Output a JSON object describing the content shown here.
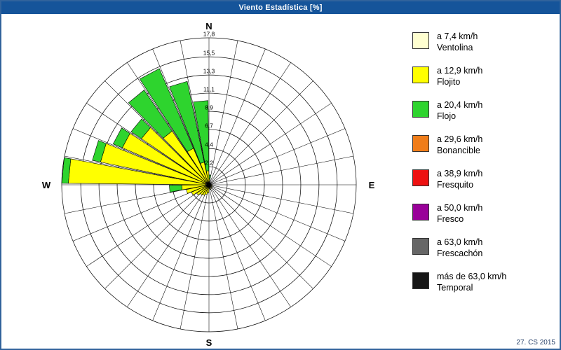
{
  "window": {
    "title": "Viento Estadística [%]"
  },
  "footer": {
    "credit": "27. CS 2015"
  },
  "legend": [
    {
      "line1": "a 7,4 km/h",
      "line2": "Ventolina",
      "color": "#FFFFD0"
    },
    {
      "line1": "a 12,9 km/h",
      "line2": "Flojito",
      "color": "#FFFF00"
    },
    {
      "line1": "a 20,4 km/h",
      "line2": "Flojo",
      "color": "#2ED42E"
    },
    {
      "line1": "a 29,6 km/h",
      "line2": "Bonancible",
      "color": "#F07D1A"
    },
    {
      "line1": "a 38,9 km/h",
      "line2": "Fresquito",
      "color": "#EE1111"
    },
    {
      "line1": "a 50,0 km/h",
      "line2": "Fresco",
      "color": "#990099"
    },
    {
      "line1": "a 63,0 km/h",
      "line2": "Frescachón",
      "color": "#666666"
    },
    {
      "line1": "más de 63,0 km/h",
      "line2": "Temporal",
      "color": "#161616"
    }
  ],
  "chart_data": {
    "type": "windrose",
    "title": "Viento Estadística [%]",
    "units": "%",
    "legend_position": "right",
    "grid": true,
    "compass": {
      "north": "N",
      "east": "E",
      "south": "S",
      "west": "W"
    },
    "ring_values": [
      2.2,
      4.4,
      6.7,
      8.9,
      11.1,
      13.3,
      15.5,
      17.8
    ],
    "ring_labels": [
      "2,2",
      "4,4",
      "6,7",
      "8,9",
      "11,1",
      "13,3",
      "15,5",
      "17,8"
    ],
    "rlim": [
      0,
      17.8
    ],
    "sectors": 32,
    "sector_angle_deg": 11.25,
    "center_color": "#000000",
    "series": [
      {
        "name": "Ventolina",
        "color": "#FFFFD0",
        "values": [
          0.2,
          0,
          0,
          0,
          0,
          0,
          0,
          0,
          0,
          0,
          0,
          0,
          0,
          0,
          0,
          0,
          0.2,
          0.2,
          0.2,
          0.2,
          0.3,
          0.3,
          0.3,
          0.3,
          0.4,
          0.4,
          0.4,
          0.4,
          0.4,
          0.3,
          0.3,
          0.2
        ]
      },
      {
        "name": "Flojito",
        "color": "#FFFF00",
        "values": [
          0.5,
          0,
          0,
          0,
          0,
          0,
          0,
          0,
          0.4,
          0,
          0.4,
          0,
          0.5,
          0,
          0.6,
          0.5,
          0.8,
          1.0,
          1.2,
          1.3,
          1.5,
          2.0,
          2.5,
          3.0,
          16.6,
          13.0,
          11.0,
          9.5,
          7.5,
          4.5,
          2.5,
          1.5
        ]
      },
      {
        "name": "Flojo",
        "color": "#2ED42E",
        "values": [
          0.5,
          0,
          0,
          0,
          0,
          0,
          0,
          0,
          0,
          0,
          0,
          0,
          0,
          0,
          0,
          0,
          0,
          0,
          0,
          0,
          0,
          0,
          0,
          1.5,
          0.8,
          1.0,
          1.2,
          1.5,
          6.0,
          10.5,
          10.0,
          8.5
        ]
      },
      {
        "name": "Bonancible",
        "color": "#F07D1A",
        "values": [
          0,
          0,
          0,
          0,
          0,
          0,
          0,
          0,
          0,
          0,
          0,
          0,
          0,
          0,
          0,
          0,
          0,
          0,
          0,
          0,
          0,
          0,
          0,
          0,
          0,
          0,
          0,
          0,
          0,
          0,
          0,
          0
        ]
      },
      {
        "name": "Fresquito",
        "color": "#EE1111",
        "values": [
          0,
          0,
          0,
          0,
          0,
          0,
          0,
          0,
          0,
          0,
          0,
          0,
          0,
          0,
          0,
          0,
          0,
          0,
          0,
          0,
          0,
          0,
          0,
          0,
          0,
          0,
          0,
          0,
          0,
          0,
          0,
          0
        ]
      },
      {
        "name": "Fresco",
        "color": "#990099",
        "values": [
          0,
          0,
          0,
          0,
          0,
          0,
          0,
          0,
          0,
          0,
          0,
          0,
          0,
          0,
          0,
          0,
          0,
          0,
          0,
          0,
          0,
          0,
          0,
          0,
          0,
          0,
          0,
          0,
          0,
          0,
          0,
          0
        ]
      },
      {
        "name": "Frescachón",
        "color": "#666666",
        "values": [
          0,
          0,
          0,
          0,
          0,
          0,
          0,
          0,
          0,
          0,
          0,
          0,
          0,
          0,
          0,
          0,
          0,
          0,
          0,
          0,
          0,
          0,
          0,
          0,
          0,
          0,
          0,
          0,
          0,
          0,
          0,
          0
        ]
      },
      {
        "name": "Temporal",
        "color": "#161616",
        "values": [
          0,
          0,
          0,
          0,
          0,
          0,
          0,
          0,
          0,
          0,
          0,
          0,
          0,
          0,
          0,
          0,
          0,
          0,
          0,
          0,
          0,
          0,
          0,
          0,
          0,
          0,
          0,
          0,
          0,
          0,
          0,
          0
        ]
      }
    ]
  }
}
